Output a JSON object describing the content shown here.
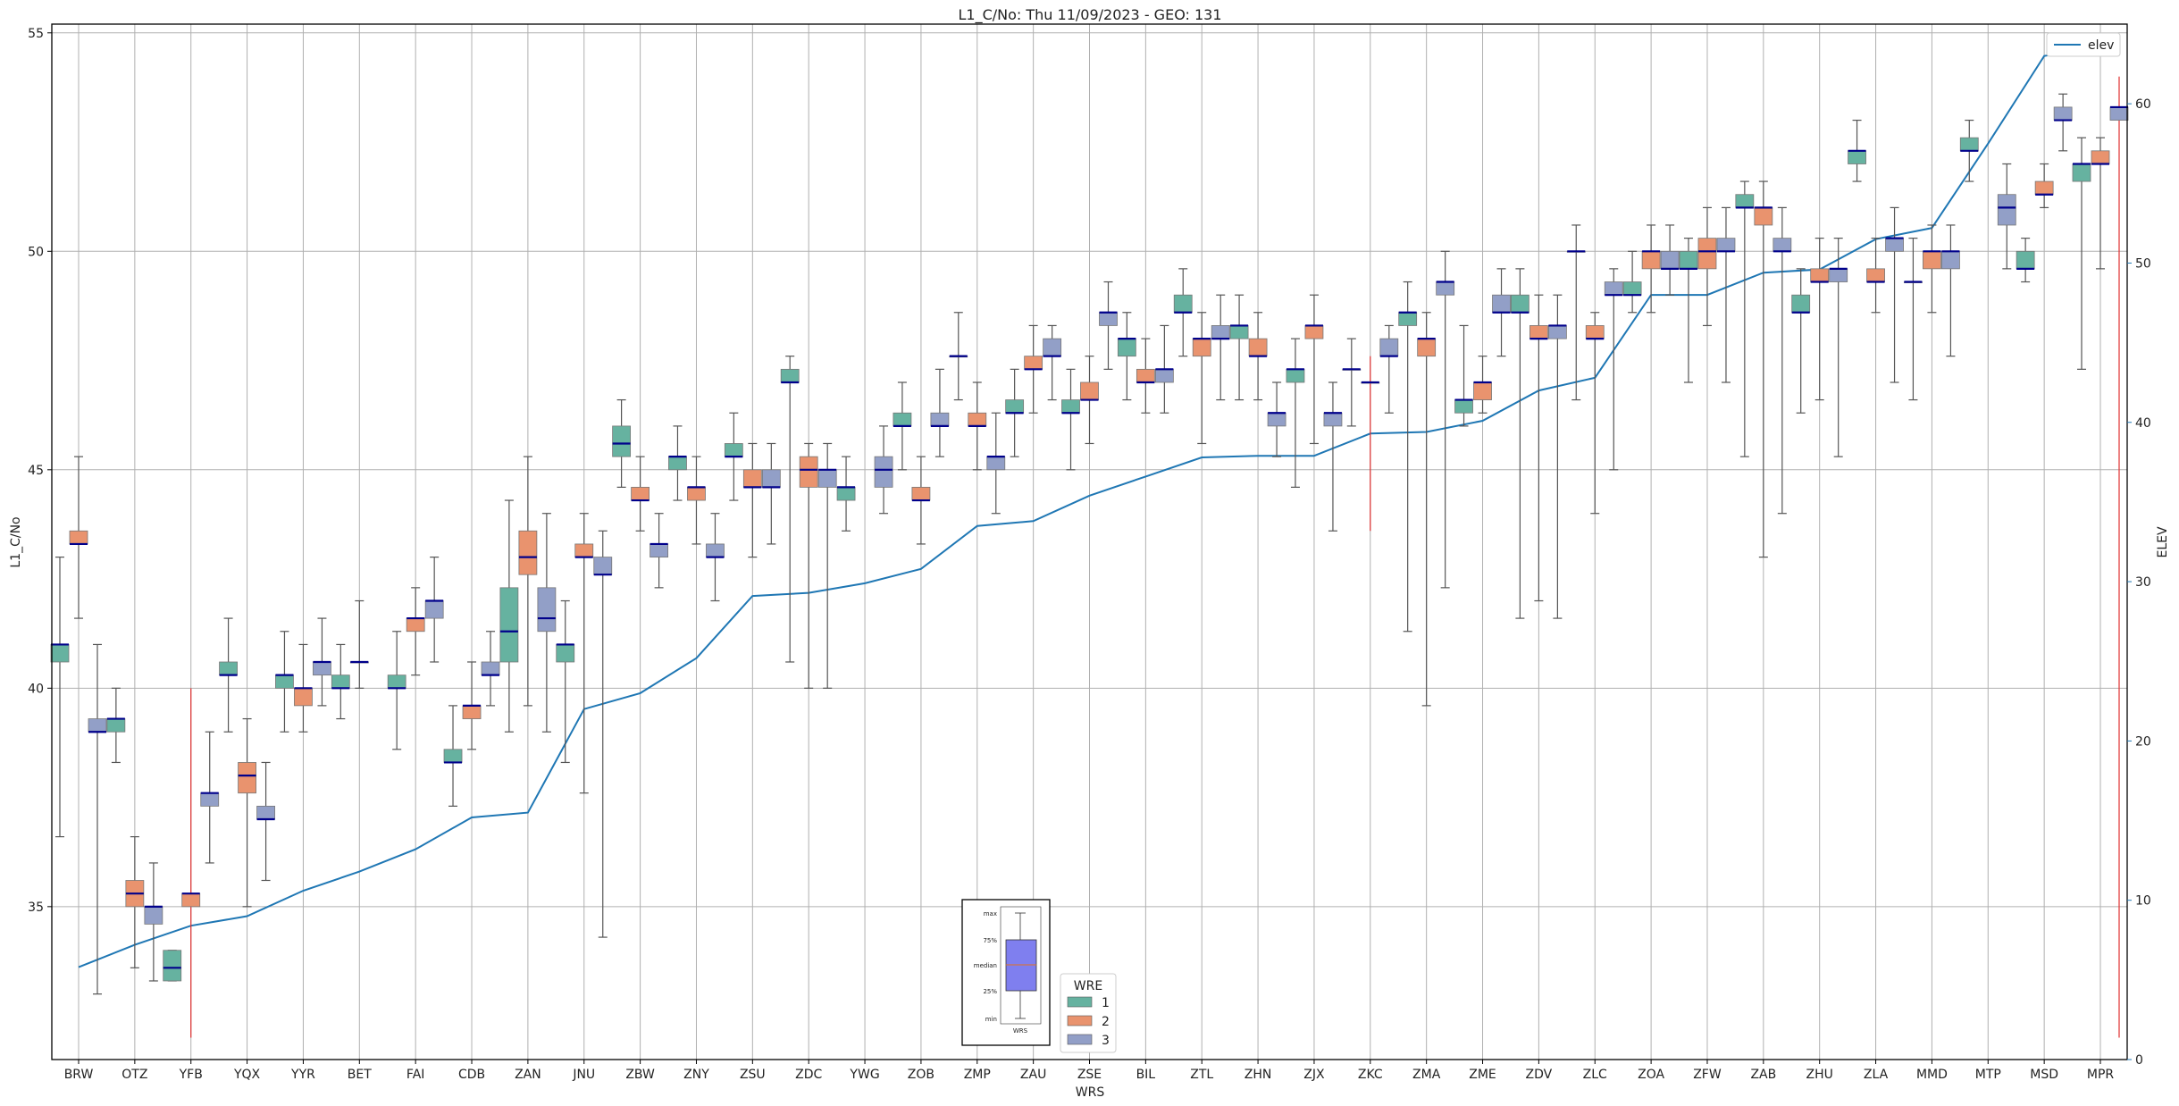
{
  "chart_data": {
    "type": "box",
    "title": "L1_C/No: Thu 11/09/2023 - GEO: 131",
    "xlabel": "WRS",
    "ylabel": "L1_C/No",
    "y2label": "ELEV",
    "ylim": [
      31.5,
      55.2
    ],
    "y2lim": [
      0,
      65
    ],
    "yticks": [
      35,
      40,
      45,
      50,
      55
    ],
    "y2ticks": [
      0,
      10,
      20,
      30,
      40,
      50,
      60
    ],
    "grid": true,
    "categories": [
      "BRW",
      "OTZ",
      "YFB",
      "YQX",
      "YYR",
      "BET",
      "FAI",
      "CDB",
      "ZAN",
      "JNU",
      "ZBW",
      "ZNY",
      "ZSU",
      "ZDC",
      "YWG",
      "ZOB",
      "ZMP",
      "ZAU",
      "ZSE",
      "BIL",
      "ZTL",
      "ZHN",
      "ZJX",
      "ZKC",
      "ZMA",
      "ZME",
      "ZDV",
      "ZLC",
      "ZOA",
      "ZFW",
      "ZAB",
      "ZHU",
      "ZLA",
      "MMD",
      "MTP",
      "MSD",
      "MPR"
    ],
    "series_colors": {
      "1": "#66b2a0",
      "2": "#e9936e",
      "3": "#929fc7"
    },
    "median_color": "#00008b",
    "whisker_color": "#555555",
    "outlier_whisker_color": "#e03030",
    "elev_color": "#1f77b4",
    "wre_legend": {
      "title": "WRE",
      "items": [
        "1",
        "2",
        "3"
      ]
    },
    "elev_legend": "elev",
    "inset": {
      "labels": [
        "max",
        "75%",
        "median",
        "25%",
        "min"
      ],
      "xlabel": "WRS"
    },
    "elev": [
      5.8,
      7.2,
      8.4,
      9.0,
      10.6,
      11.8,
      13.2,
      15.2,
      15.5,
      22.0,
      23.0,
      25.2,
      29.1,
      29.3,
      29.9,
      30.8,
      33.5,
      33.8,
      35.4,
      36.6,
      37.8,
      37.9,
      37.9,
      39.3,
      39.4,
      40.1,
      42.0,
      42.8,
      48.0,
      48.0,
      49.4,
      49.6,
      51.5,
      52.2,
      57.5,
      63.0,
      63.6
    ],
    "boxes": [
      {
        "cat": "BRW",
        "s": 1,
        "q1": 40.6,
        "med": 41.0,
        "q3": 41.0,
        "lo": 36.6,
        "hi": 43.0
      },
      {
        "cat": "BRW",
        "s": 2,
        "q1": 43.3,
        "med": 43.3,
        "q3": 43.6,
        "lo": 41.6,
        "hi": 45.3
      },
      {
        "cat": "BRW",
        "s": 3,
        "q1": 39.0,
        "med": 39.0,
        "q3": 39.3,
        "lo": 33.0,
        "hi": 41.0
      },
      {
        "cat": "OTZ",
        "s": 1,
        "q1": 39.0,
        "med": 39.3,
        "q3": 39.3,
        "lo": 38.3,
        "hi": 40.0
      },
      {
        "cat": "OTZ",
        "s": 2,
        "q1": 35.0,
        "med": 35.3,
        "q3": 35.6,
        "lo": 33.6,
        "hi": 36.6
      },
      {
        "cat": "OTZ",
        "s": 3,
        "q1": 34.6,
        "med": 35.0,
        "q3": 35.0,
        "lo": 33.3,
        "hi": 36.0
      },
      {
        "cat": "YFB",
        "s": 1,
        "q1": 33.3,
        "med": 33.6,
        "q3": 34.0,
        "lo": 33.3,
        "hi": 34.0
      },
      {
        "cat": "YFB",
        "s": 2,
        "q1": 35.0,
        "med": 35.3,
        "q3": 35.3,
        "lo": 32.0,
        "hi": 40.0,
        "red": true
      },
      {
        "cat": "YFB",
        "s": 3,
        "q1": 37.3,
        "med": 37.6,
        "q3": 37.6,
        "lo": 36.0,
        "hi": 39.0
      },
      {
        "cat": "YQX",
        "s": 1,
        "q1": 40.3,
        "med": 40.3,
        "q3": 40.6,
        "lo": 39.0,
        "hi": 41.6
      },
      {
        "cat": "YQX",
        "s": 2,
        "q1": 37.6,
        "med": 38.0,
        "q3": 38.3,
        "lo": 35.0,
        "hi": 39.3
      },
      {
        "cat": "YQX",
        "s": 3,
        "q1": 37.0,
        "med": 37.0,
        "q3": 37.3,
        "lo": 35.6,
        "hi": 38.3
      },
      {
        "cat": "YYR",
        "s": 1,
        "q1": 40.0,
        "med": 40.3,
        "q3": 40.3,
        "lo": 39.0,
        "hi": 41.3
      },
      {
        "cat": "YYR",
        "s": 2,
        "q1": 39.6,
        "med": 40.0,
        "q3": 40.0,
        "lo": 39.0,
        "hi": 41.0
      },
      {
        "cat": "YYR",
        "s": 3,
        "q1": 40.3,
        "med": 40.6,
        "q3": 40.6,
        "lo": 39.6,
        "hi": 41.6
      },
      {
        "cat": "BET",
        "s": 1,
        "q1": 40.0,
        "med": 40.0,
        "q3": 40.3,
        "lo": 39.3,
        "hi": 41.0
      },
      {
        "cat": "BET",
        "s": 2,
        "q1": 40.6,
        "med": 40.6,
        "q3": 40.6,
        "lo": 40.0,
        "hi": 42.0
      },
      {
        "cat": "FAI",
        "s": 1,
        "q1": 40.0,
        "med": 40.0,
        "q3": 40.3,
        "lo": 38.6,
        "hi": 41.3
      },
      {
        "cat": "FAI",
        "s": 2,
        "q1": 41.3,
        "med": 41.6,
        "q3": 41.6,
        "lo": 40.3,
        "hi": 42.3
      },
      {
        "cat": "FAI",
        "s": 3,
        "q1": 41.6,
        "med": 42.0,
        "q3": 42.0,
        "lo": 40.6,
        "hi": 43.0
      },
      {
        "cat": "CDB",
        "s": 1,
        "q1": 38.3,
        "med": 38.3,
        "q3": 38.6,
        "lo": 37.3,
        "hi": 39.6
      },
      {
        "cat": "CDB",
        "s": 2,
        "q1": 39.3,
        "med": 39.6,
        "q3": 39.6,
        "lo": 38.6,
        "hi": 40.6
      },
      {
        "cat": "CDB",
        "s": 3,
        "q1": 40.3,
        "med": 40.3,
        "q3": 40.6,
        "lo": 39.6,
        "hi": 41.3
      },
      {
        "cat": "ZAN",
        "s": 1,
        "q1": 40.6,
        "med": 41.3,
        "q3": 42.3,
        "lo": 39.0,
        "hi": 44.3
      },
      {
        "cat": "ZAN",
        "s": 2,
        "q1": 42.6,
        "med": 43.0,
        "q3": 43.6,
        "lo": 39.6,
        "hi": 45.3
      },
      {
        "cat": "ZAN",
        "s": 3,
        "q1": 41.3,
        "med": 41.6,
        "q3": 42.3,
        "lo": 39.0,
        "hi": 44.0
      },
      {
        "cat": "JNU",
        "s": 1,
        "q1": 40.6,
        "med": 41.0,
        "q3": 41.0,
        "lo": 38.3,
        "hi": 42.0
      },
      {
        "cat": "JNU",
        "s": 2,
        "q1": 43.0,
        "med": 43.0,
        "q3": 43.3,
        "lo": 37.6,
        "hi": 44.0
      },
      {
        "cat": "JNU",
        "s": 3,
        "q1": 42.6,
        "med": 42.6,
        "q3": 43.0,
        "lo": 34.3,
        "hi": 43.6
      },
      {
        "cat": "ZBW",
        "s": 1,
        "q1": 45.3,
        "med": 45.6,
        "q3": 46.0,
        "lo": 44.6,
        "hi": 46.6
      },
      {
        "cat": "ZBW",
        "s": 2,
        "q1": 44.3,
        "med": 44.3,
        "q3": 44.6,
        "lo": 43.6,
        "hi": 45.3
      },
      {
        "cat": "ZBW",
        "s": 3,
        "q1": 43.0,
        "med": 43.3,
        "q3": 43.3,
        "lo": 42.3,
        "hi": 44.0
      },
      {
        "cat": "ZNY",
        "s": 1,
        "q1": 45.0,
        "med": 45.3,
        "q3": 45.3,
        "lo": 44.3,
        "hi": 46.0
      },
      {
        "cat": "ZNY",
        "s": 2,
        "q1": 44.3,
        "med": 44.6,
        "q3": 44.6,
        "lo": 43.3,
        "hi": 45.3
      },
      {
        "cat": "ZNY",
        "s": 3,
        "q1": 43.0,
        "med": 43.0,
        "q3": 43.3,
        "lo": 42.0,
        "hi": 44.0
      },
      {
        "cat": "ZSU",
        "s": 1,
        "q1": 45.3,
        "med": 45.3,
        "q3": 45.6,
        "lo": 44.3,
        "hi": 46.3
      },
      {
        "cat": "ZSU",
        "s": 2,
        "q1": 44.6,
        "med": 44.6,
        "q3": 45.0,
        "lo": 43.0,
        "hi": 45.6
      },
      {
        "cat": "ZSU",
        "s": 3,
        "q1": 44.6,
        "med": 44.6,
        "q3": 45.0,
        "lo": 43.3,
        "hi": 45.6
      },
      {
        "cat": "ZDC",
        "s": 1,
        "q1": 47.0,
        "med": 47.0,
        "q3": 47.3,
        "lo": 40.6,
        "hi": 47.6
      },
      {
        "cat": "ZDC",
        "s": 2,
        "q1": 44.6,
        "med": 45.0,
        "q3": 45.3,
        "lo": 40.0,
        "hi": 45.6
      },
      {
        "cat": "ZDC",
        "s": 3,
        "q1": 44.6,
        "med": 45.0,
        "q3": 45.0,
        "lo": 40.0,
        "hi": 45.6
      },
      {
        "cat": "YWG",
        "s": 1,
        "q1": 44.3,
        "med": 44.6,
        "q3": 44.6,
        "lo": 43.6,
        "hi": 45.3
      },
      {
        "cat": "YWG",
        "s": 3,
        "q1": 44.6,
        "med": 45.0,
        "q3": 45.3,
        "lo": 44.0,
        "hi": 46.0
      },
      {
        "cat": "ZOB",
        "s": 1,
        "q1": 46.0,
        "med": 46.0,
        "q3": 46.3,
        "lo": 45.0,
        "hi": 47.0
      },
      {
        "cat": "ZOB",
        "s": 2,
        "q1": 44.3,
        "med": 44.3,
        "q3": 44.6,
        "lo": 43.3,
        "hi": 45.3
      },
      {
        "cat": "ZOB",
        "s": 3,
        "q1": 46.0,
        "med": 46.0,
        "q3": 46.3,
        "lo": 45.3,
        "hi": 47.3
      },
      {
        "cat": "ZMP",
        "s": 1,
        "q1": 47.6,
        "med": 47.6,
        "q3": 47.6,
        "lo": 46.6,
        "hi": 48.6
      },
      {
        "cat": "ZMP",
        "s": 2,
        "q1": 46.0,
        "med": 46.0,
        "q3": 46.3,
        "lo": 45.0,
        "hi": 47.0
      },
      {
        "cat": "ZMP",
        "s": 3,
        "q1": 45.0,
        "med": 45.3,
        "q3": 45.3,
        "lo": 44.0,
        "hi": 46.3
      },
      {
        "cat": "ZAU",
        "s": 1,
        "q1": 46.3,
        "med": 46.3,
        "q3": 46.6,
        "lo": 45.3,
        "hi": 47.3
      },
      {
        "cat": "ZAU",
        "s": 2,
        "q1": 47.3,
        "med": 47.3,
        "q3": 47.6,
        "lo": 46.3,
        "hi": 48.3
      },
      {
        "cat": "ZAU",
        "s": 3,
        "q1": 47.6,
        "med": 47.6,
        "q3": 48.0,
        "lo": 46.6,
        "hi": 48.3
      },
      {
        "cat": "ZSE",
        "s": 1,
        "q1": 46.3,
        "med": 46.3,
        "q3": 46.6,
        "lo": 45.0,
        "hi": 47.3
      },
      {
        "cat": "ZSE",
        "s": 2,
        "q1": 46.6,
        "med": 46.6,
        "q3": 47.0,
        "lo": 45.6,
        "hi": 47.6
      },
      {
        "cat": "ZSE",
        "s": 3,
        "q1": 48.3,
        "med": 48.6,
        "q3": 48.6,
        "lo": 47.3,
        "hi": 49.3
      },
      {
        "cat": "BIL",
        "s": 1,
        "q1": 47.6,
        "med": 48.0,
        "q3": 48.0,
        "lo": 46.6,
        "hi": 48.6
      },
      {
        "cat": "BIL",
        "s": 2,
        "q1": 47.0,
        "med": 47.0,
        "q3": 47.3,
        "lo": 46.3,
        "hi": 48.0
      },
      {
        "cat": "BIL",
        "s": 3,
        "q1": 47.0,
        "med": 47.3,
        "q3": 47.3,
        "lo": 46.3,
        "hi": 48.3
      },
      {
        "cat": "ZTL",
        "s": 1,
        "q1": 48.6,
        "med": 48.6,
        "q3": 49.0,
        "lo": 47.6,
        "hi": 49.6
      },
      {
        "cat": "ZTL",
        "s": 2,
        "q1": 47.6,
        "med": 48.0,
        "q3": 48.0,
        "lo": 45.6,
        "hi": 48.6
      },
      {
        "cat": "ZTL",
        "s": 3,
        "q1": 48.0,
        "med": 48.0,
        "q3": 48.3,
        "lo": 46.6,
        "hi": 49.0
      },
      {
        "cat": "ZHN",
        "s": 1,
        "q1": 48.0,
        "med": 48.3,
        "q3": 48.3,
        "lo": 46.6,
        "hi": 49.0
      },
      {
        "cat": "ZHN",
        "s": 2,
        "q1": 47.6,
        "med": 47.6,
        "q3": 48.0,
        "lo": 46.6,
        "hi": 48.6
      },
      {
        "cat": "ZHN",
        "s": 3,
        "q1": 46.0,
        "med": 46.3,
        "q3": 46.3,
        "lo": 45.3,
        "hi": 47.0
      },
      {
        "cat": "ZJX",
        "s": 1,
        "q1": 47.0,
        "med": 47.3,
        "q3": 47.3,
        "lo": 44.6,
        "hi": 48.0
      },
      {
        "cat": "ZJX",
        "s": 2,
        "q1": 48.0,
        "med": 48.3,
        "q3": 48.3,
        "lo": 45.6,
        "hi": 49.0
      },
      {
        "cat": "ZJX",
        "s": 3,
        "q1": 46.0,
        "med": 46.3,
        "q3": 46.3,
        "lo": 43.6,
        "hi": 47.0
      },
      {
        "cat": "ZKC",
        "s": 2,
        "q1": 47.0,
        "med": 47.0,
        "q3": 47.0,
        "lo": 43.6,
        "hi": 47.6,
        "red": true
      },
      {
        "cat": "ZKC",
        "s": 1,
        "q1": 47.3,
        "med": 47.3,
        "q3": 47.3,
        "lo": 46.0,
        "hi": 48.0
      },
      {
        "cat": "ZKC",
        "s": 3,
        "q1": 47.6,
        "med": 47.6,
        "q3": 48.0,
        "lo": 46.3,
        "hi": 48.3
      },
      {
        "cat": "ZMA",
        "s": 1,
        "q1": 48.3,
        "med": 48.6,
        "q3": 48.6,
        "lo": 41.3,
        "hi": 49.3
      },
      {
        "cat": "ZMA",
        "s": 2,
        "q1": 47.6,
        "med": 48.0,
        "q3": 48.0,
        "lo": 39.6,
        "hi": 48.6
      },
      {
        "cat": "ZMA",
        "s": 3,
        "q1": 49.0,
        "med": 49.3,
        "q3": 49.3,
        "lo": 42.3,
        "hi": 50.0
      },
      {
        "cat": "ZME",
        "s": 1,
        "q1": 46.3,
        "med": 46.6,
        "q3": 46.6,
        "lo": 46.0,
        "hi": 48.3
      },
      {
        "cat": "ZME",
        "s": 2,
        "q1": 46.6,
        "med": 47.0,
        "q3": 47.0,
        "lo": 46.3,
        "hi": 47.6
      },
      {
        "cat": "ZME",
        "s": 3,
        "q1": 48.6,
        "med": 48.6,
        "q3": 49.0,
        "lo": 47.6,
        "hi": 49.6
      },
      {
        "cat": "ZDV",
        "s": 1,
        "q1": 48.6,
        "med": 48.6,
        "q3": 49.0,
        "lo": 41.6,
        "hi": 49.6
      },
      {
        "cat": "ZDV",
        "s": 2,
        "q1": 48.0,
        "med": 48.0,
        "q3": 48.3,
        "lo": 42.0,
        "hi": 49.0
      },
      {
        "cat": "ZDV",
        "s": 3,
        "q1": 48.0,
        "med": 48.3,
        "q3": 48.3,
        "lo": 41.6,
        "hi": 49.0
      },
      {
        "cat": "ZLC",
        "s": 1,
        "q1": 50.0,
        "med": 50.0,
        "q3": 50.0,
        "lo": 46.6,
        "hi": 50.6
      },
      {
        "cat": "ZLC",
        "s": 2,
        "q1": 48.0,
        "med": 48.0,
        "q3": 48.3,
        "lo": 44.0,
        "hi": 48.6
      },
      {
        "cat": "ZLC",
        "s": 3,
        "q1": 49.0,
        "med": 49.0,
        "q3": 49.3,
        "lo": 45.0,
        "hi": 49.6
      },
      {
        "cat": "ZOA",
        "s": 1,
        "q1": 49.0,
        "med": 49.0,
        "q3": 49.3,
        "lo": 48.6,
        "hi": 50.0
      },
      {
        "cat": "ZOA",
        "s": 2,
        "q1": 49.6,
        "med": 50.0,
        "q3": 50.0,
        "lo": 48.6,
        "hi": 50.6
      },
      {
        "cat": "ZOA",
        "s": 3,
        "q1": 49.6,
        "med": 49.6,
        "q3": 50.0,
        "lo": 49.0,
        "hi": 50.6
      },
      {
        "cat": "ZFW",
        "s": 1,
        "q1": 49.6,
        "med": 49.6,
        "q3": 50.0,
        "lo": 47.0,
        "hi": 50.3
      },
      {
        "cat": "ZFW",
        "s": 2,
        "q1": 49.6,
        "med": 50.0,
        "q3": 50.3,
        "lo": 48.3,
        "hi": 51.0
      },
      {
        "cat": "ZFW",
        "s": 3,
        "q1": 50.0,
        "med": 50.0,
        "q3": 50.3,
        "lo": 47.0,
        "hi": 51.0
      },
      {
        "cat": "ZAB",
        "s": 1,
        "q1": 51.0,
        "med": 51.0,
        "q3": 51.3,
        "lo": 45.3,
        "hi": 51.6
      },
      {
        "cat": "ZAB",
        "s": 2,
        "q1": 50.6,
        "med": 51.0,
        "q3": 51.0,
        "lo": 43.0,
        "hi": 51.6
      },
      {
        "cat": "ZAB",
        "s": 3,
        "q1": 50.0,
        "med": 50.0,
        "q3": 50.3,
        "lo": 44.0,
        "hi": 51.0
      },
      {
        "cat": "ZHU",
        "s": 1,
        "q1": 48.6,
        "med": 48.6,
        "q3": 49.0,
        "lo": 46.3,
        "hi": 49.6
      },
      {
        "cat": "ZHU",
        "s": 2,
        "q1": 49.3,
        "med": 49.3,
        "q3": 49.6,
        "lo": 46.6,
        "hi": 50.3
      },
      {
        "cat": "ZHU",
        "s": 3,
        "q1": 49.3,
        "med": 49.6,
        "q3": 49.6,
        "lo": 45.3,
        "hi": 50.3
      },
      {
        "cat": "ZLA",
        "s": 1,
        "q1": 52.0,
        "med": 52.3,
        "q3": 52.3,
        "lo": 51.6,
        "hi": 53.0
      },
      {
        "cat": "ZLA",
        "s": 2,
        "q1": 49.3,
        "med": 49.3,
        "q3": 49.6,
        "lo": 48.6,
        "hi": 50.3
      },
      {
        "cat": "ZLA",
        "s": 3,
        "q1": 50.0,
        "med": 50.3,
        "q3": 50.3,
        "lo": 47.0,
        "hi": 51.0
      },
      {
        "cat": "MMD",
        "s": 1,
        "q1": 49.3,
        "med": 49.3,
        "q3": 49.3,
        "lo": 46.6,
        "hi": 50.3
      },
      {
        "cat": "MMD",
        "s": 2,
        "q1": 49.6,
        "med": 50.0,
        "q3": 50.0,
        "lo": 48.6,
        "hi": 50.6
      },
      {
        "cat": "MMD",
        "s": 3,
        "q1": 49.6,
        "med": 50.0,
        "q3": 50.0,
        "lo": 47.6,
        "hi": 50.6
      },
      {
        "cat": "MTP",
        "s": 1,
        "q1": 52.3,
        "med": 52.3,
        "q3": 52.6,
        "lo": 51.6,
        "hi": 53.0
      },
      {
        "cat": "MTP",
        "s": 3,
        "q1": 50.6,
        "med": 51.0,
        "q3": 51.3,
        "lo": 49.6,
        "hi": 52.0
      },
      {
        "cat": "MSD",
        "s": 2,
        "q1": 51.3,
        "med": 51.3,
        "q3": 51.6,
        "lo": 51.0,
        "hi": 52.0
      },
      {
        "cat": "MSD",
        "s": 1,
        "q1": 49.6,
        "med": 49.6,
        "q3": 50.0,
        "lo": 49.3,
        "hi": 50.3
      },
      {
        "cat": "MSD",
        "s": 3,
        "q1": 53.0,
        "med": 53.0,
        "q3": 53.3,
        "lo": 52.3,
        "hi": 53.6
      },
      {
        "cat": "MPR",
        "s": 1,
        "q1": 51.6,
        "med": 52.0,
        "q3": 52.0,
        "lo": 47.3,
        "hi": 52.6
      },
      {
        "cat": "MPR",
        "s": 2,
        "q1": 52.0,
        "med": 52.0,
        "q3": 52.3,
        "lo": 49.6,
        "hi": 52.6
      },
      {
        "cat": "MPR",
        "s": 3,
        "q1": 53.0,
        "med": 53.3,
        "q3": 53.3,
        "lo": 32.0,
        "hi": 54.0,
        "red": true
      }
    ]
  }
}
